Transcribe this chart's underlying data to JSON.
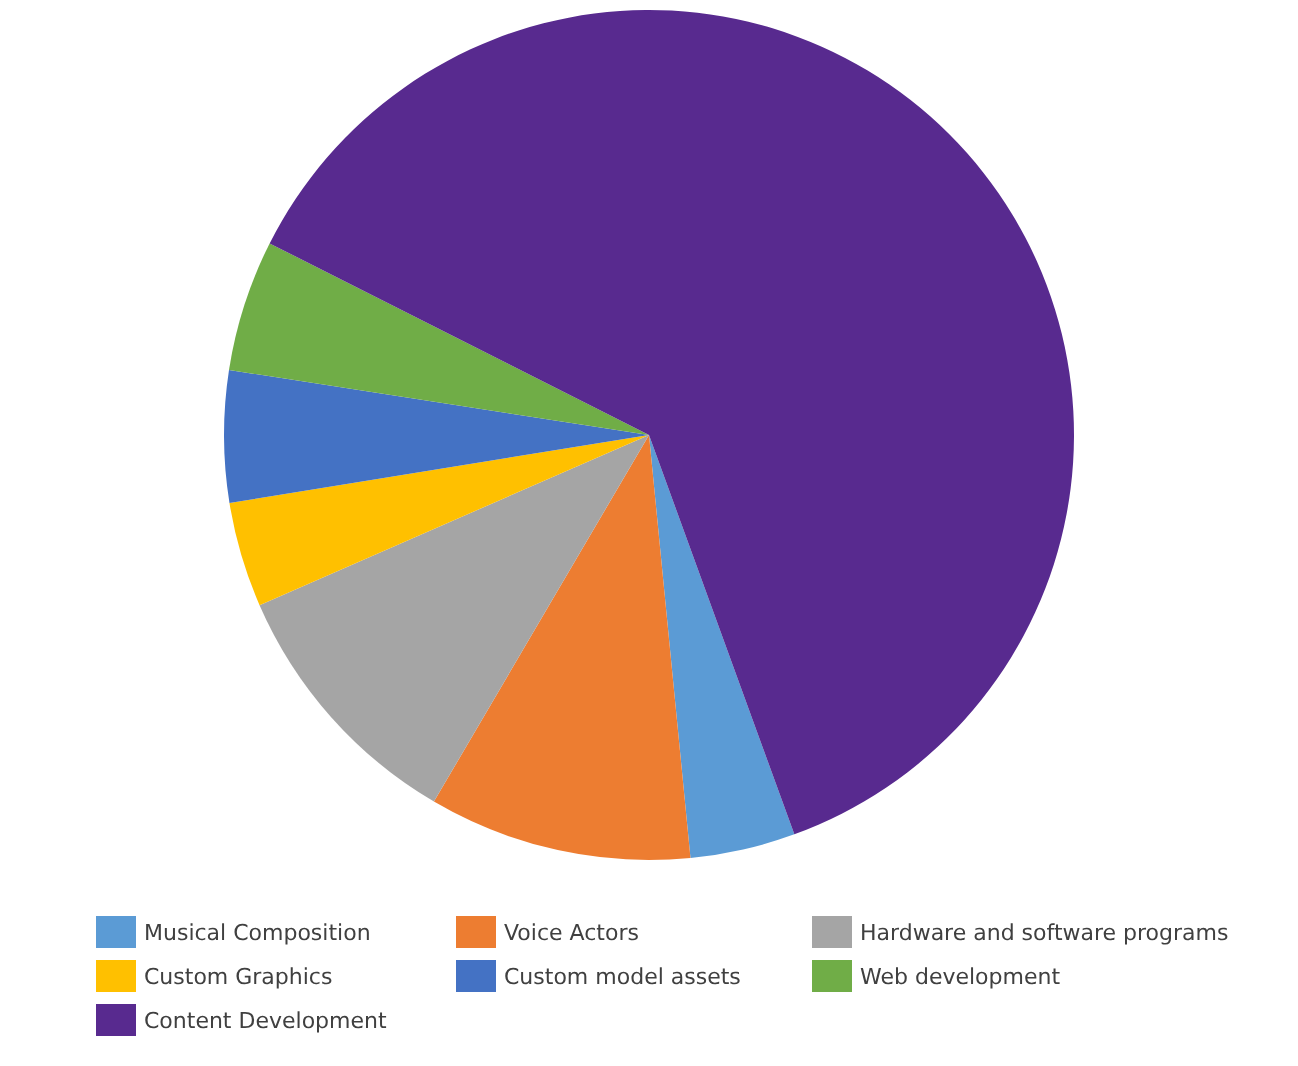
{
  "chart_data": {
    "type": "pie",
    "categories": [
      "Musical Composition",
      "Voice Actors",
      "Hardware and software programs",
      "Custom Graphics",
      "Custom model assets",
      "Web development",
      "Content Development"
    ],
    "values": [
      4,
      10,
      10,
      4,
      5,
      5,
      62
    ],
    "colors": [
      "#5b9bd5",
      "#ed7d31",
      "#a5a5a5",
      "#ffc000",
      "#4472c4",
      "#70ad47",
      "#582a8f"
    ],
    "legend": "bottom"
  }
}
